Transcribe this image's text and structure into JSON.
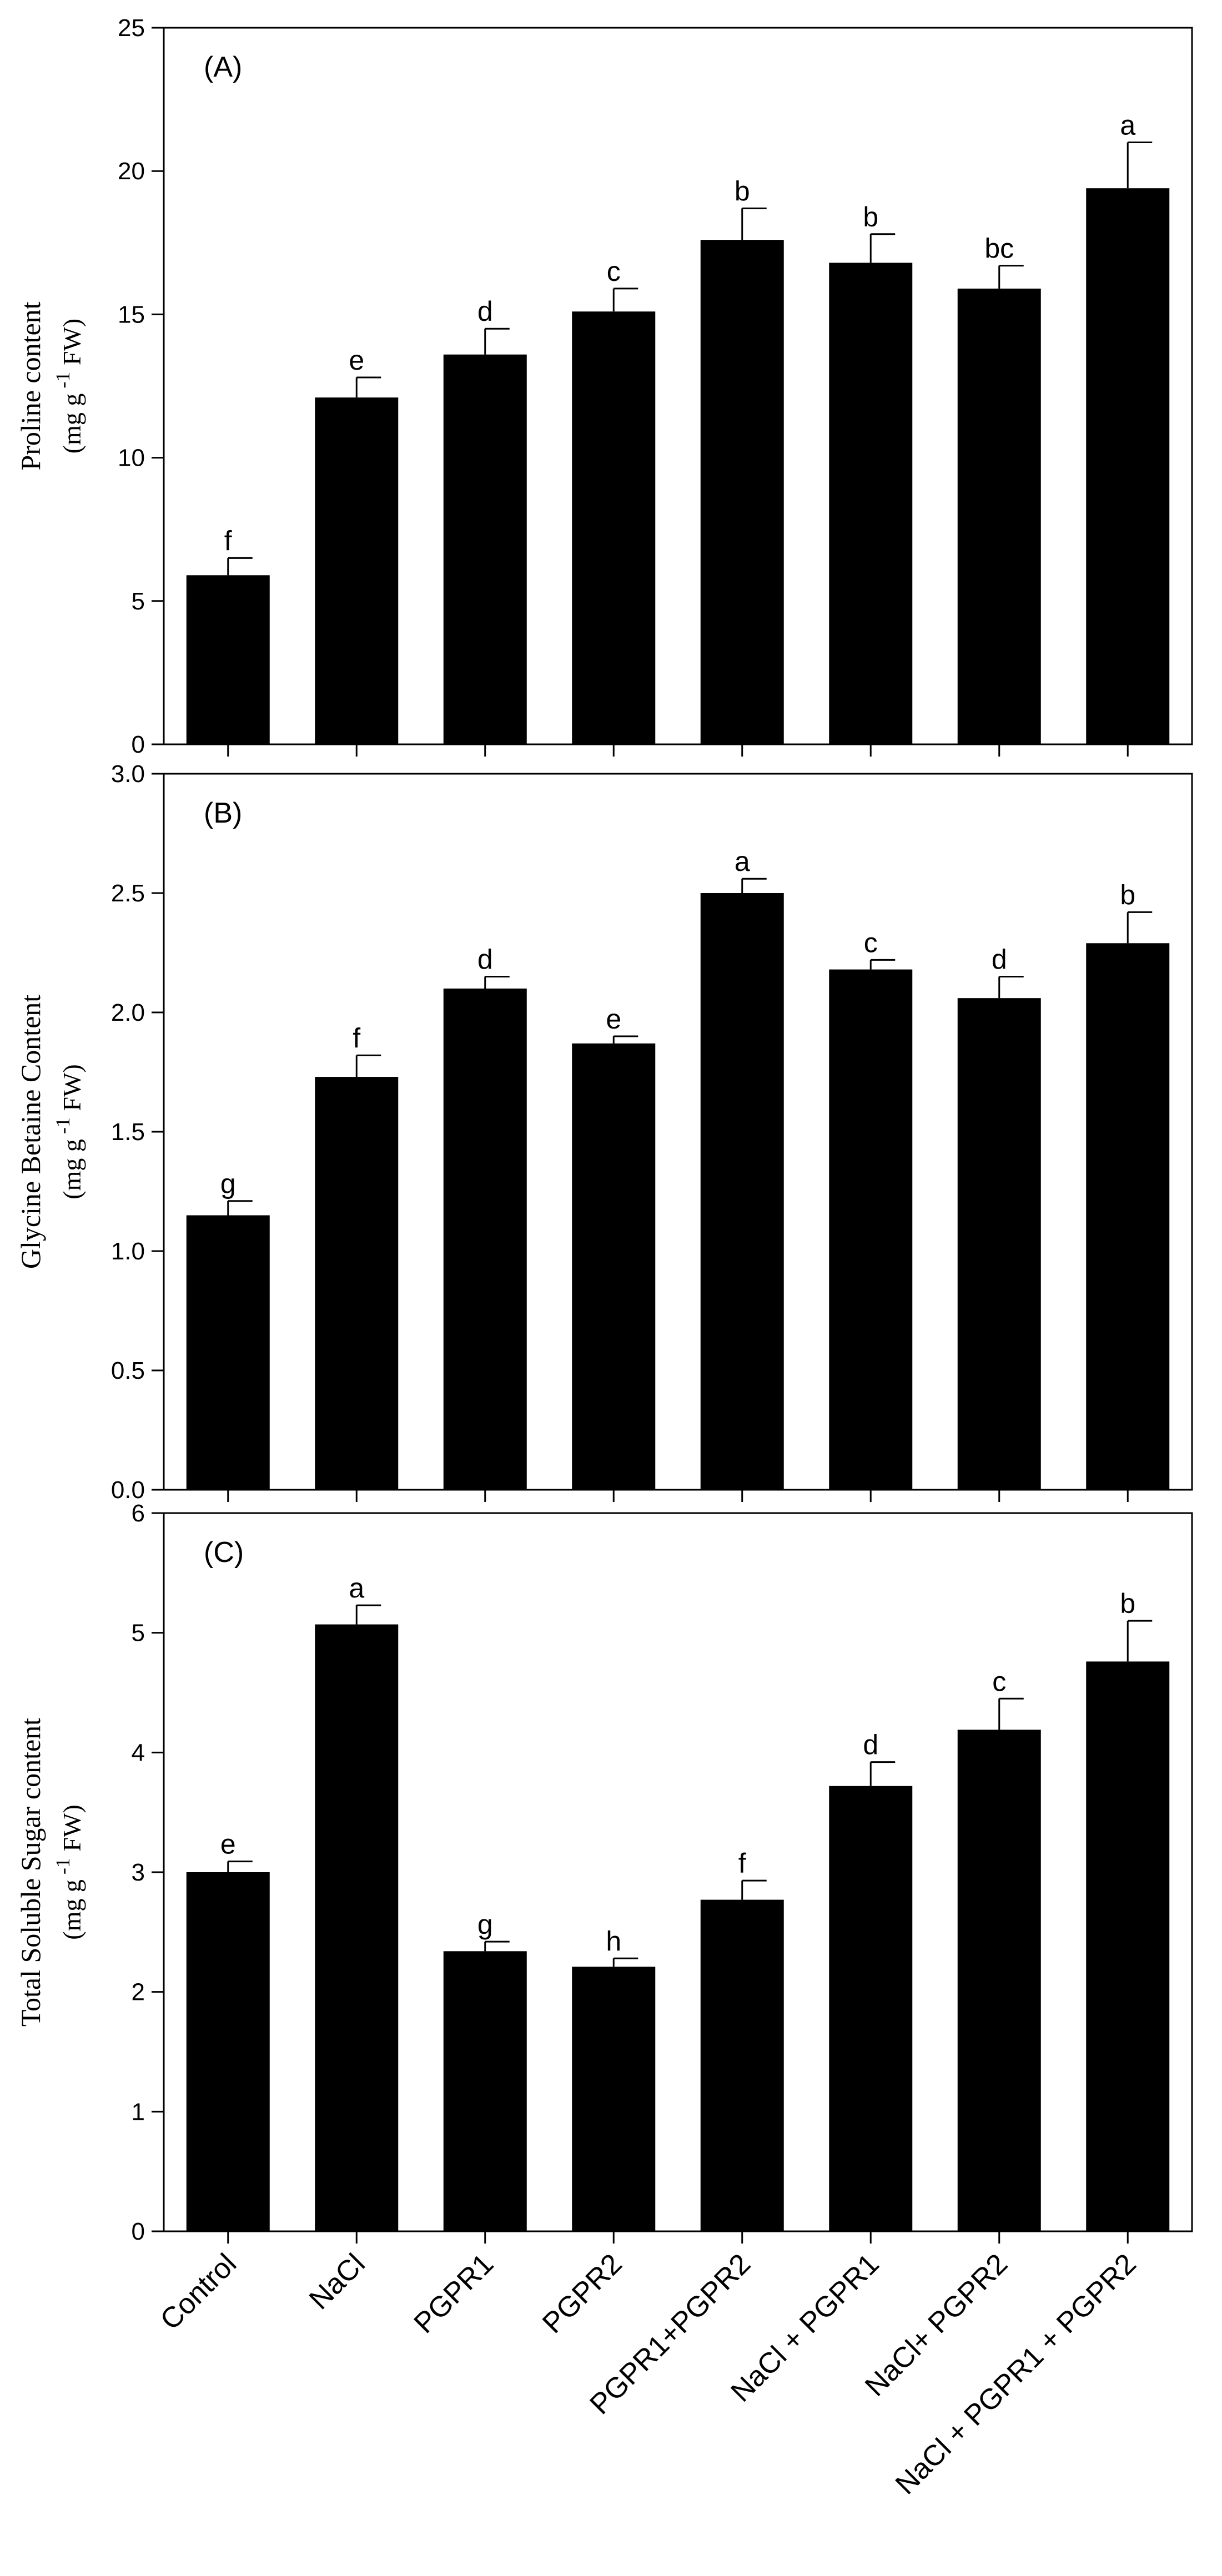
{
  "categories": [
    "Control",
    "NaCl",
    "PGPR1",
    "PGPR2",
    "PGPR1+PGPR2",
    "NaCl + PGPR1",
    "NaCl+ PGPR2",
    "NaCl + PGPR1 + PGPR2"
  ],
  "chart_data": [
    {
      "type": "bar",
      "panel": "(A)",
      "ylabel": "Proline content",
      "yunit": {
        "prefix": "(mg g",
        "sup": "-1",
        "suffix": " FW)"
      },
      "ylim": [
        0,
        25
      ],
      "yticks": [
        0,
        5,
        10,
        15,
        20,
        25
      ],
      "ytick_labels": [
        "0",
        "5",
        "10",
        "15",
        "20",
        "25"
      ],
      "values": [
        5.9,
        12.1,
        13.6,
        15.1,
        17.6,
        16.8,
        15.9,
        19.4
      ],
      "errors": [
        0.6,
        0.7,
        0.9,
        0.8,
        1.1,
        1.0,
        0.8,
        1.6
      ],
      "letters": [
        "f",
        "e",
        "d",
        "c",
        "b",
        "b",
        "bc",
        "a"
      ]
    },
    {
      "type": "bar",
      "panel": "(B)",
      "ylabel": "Glycine Betaine Content",
      "yunit": {
        "prefix": "(mg g",
        "sup": "-1",
        "suffix": " FW)"
      },
      "ylim": [
        0,
        3.0
      ],
      "yticks": [
        0,
        0.5,
        1.0,
        1.5,
        2.0,
        2.5,
        3.0
      ],
      "ytick_labels": [
        "0.0",
        "0.5",
        "1.0",
        "1.5",
        "2.0",
        "2.5",
        "3.0"
      ],
      "values": [
        1.15,
        1.73,
        2.1,
        1.87,
        2.5,
        2.18,
        2.06,
        2.29
      ],
      "errors": [
        0.06,
        0.09,
        0.05,
        0.03,
        0.06,
        0.04,
        0.09,
        0.13
      ],
      "letters": [
        "g",
        "f",
        "d",
        "e",
        "a",
        "c",
        "d",
        "b"
      ]
    },
    {
      "type": "bar",
      "panel": "(C)",
      "ylabel": "Total Soluble Sugar content",
      "yunit": {
        "prefix": "(mg g",
        "sup": "-1",
        "suffix": " FW)"
      },
      "ylim": [
        0,
        6
      ],
      "yticks": [
        0,
        1,
        2,
        3,
        4,
        5,
        6
      ],
      "ytick_labels": [
        "0",
        "1",
        "2",
        "3",
        "4",
        "5",
        "6"
      ],
      "values": [
        3.0,
        5.07,
        2.34,
        2.21,
        2.77,
        3.72,
        4.19,
        4.76
      ],
      "errors": [
        0.09,
        0.16,
        0.08,
        0.07,
        0.16,
        0.2,
        0.26,
        0.34
      ],
      "letters": [
        "e",
        "a",
        "g",
        "h",
        "f",
        "d",
        "c",
        "b"
      ]
    }
  ]
}
